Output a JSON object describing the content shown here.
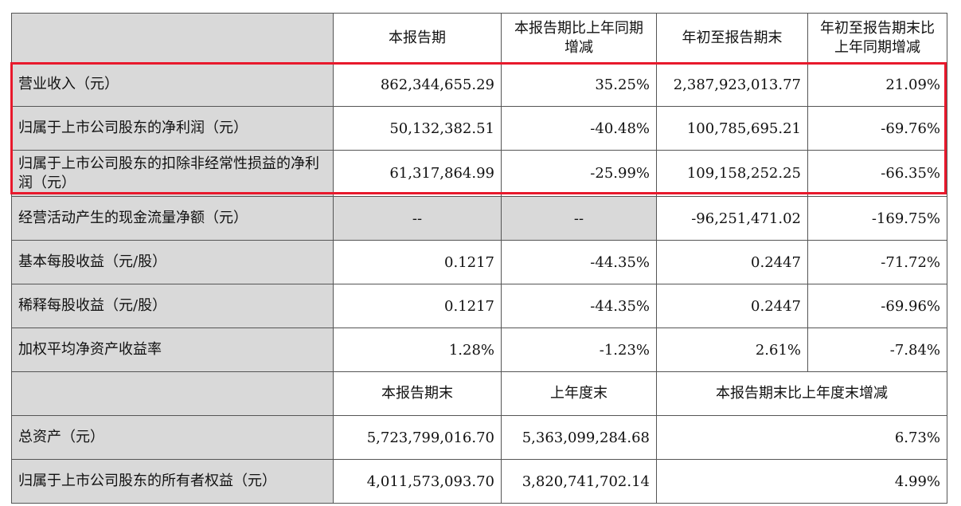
{
  "headers_top": [
    "",
    "本报告期",
    "本报告期比上年同期增减",
    "年初至报告期末",
    "年初至报告期末比上年同期增减"
  ],
  "rows_top": [
    {
      "label": "营业收入（元）",
      "cur": "862,344,655.29",
      "cur_chg": "35.25%",
      "ytd": "2,387,923,013.77",
      "ytd_chg": "21.09%"
    },
    {
      "label": "归属于上市公司股东的净利润（元）",
      "cur": "50,132,382.51",
      "cur_chg": "-40.48%",
      "ytd": "100,785,695.21",
      "ytd_chg": "-69.76%"
    },
    {
      "label": "归属于上市公司股东的扣除非经常性损益的净利润（元）",
      "cur": "61,317,864.99",
      "cur_chg": "-25.99%",
      "ytd": "109,158,252.25",
      "ytd_chg": "-66.35%"
    },
    {
      "label": "经营活动产生的现金流量净额（元）",
      "cur": "--",
      "cur_chg": "--",
      "ytd": "-96,251,471.02",
      "ytd_chg": "-169.75%"
    },
    {
      "label": "基本每股收益（元/股）",
      "cur": "0.1217",
      "cur_chg": "-44.35%",
      "ytd": "0.2447",
      "ytd_chg": "-71.72%"
    },
    {
      "label": "稀释每股收益（元/股）",
      "cur": "0.1217",
      "cur_chg": "-44.35%",
      "ytd": "0.2447",
      "ytd_chg": "-69.96%"
    },
    {
      "label": "加权平均净资产收益率",
      "cur": "1.28%",
      "cur_chg": "-1.23%",
      "ytd": "2.61%",
      "ytd_chg": "-7.84%"
    }
  ],
  "headers_bottom": [
    "",
    "本报告期末",
    "上年度末",
    "本报告期末比上年度末增减"
  ],
  "rows_bottom": [
    {
      "label": "总资产（元）",
      "end": "5,723,799,016.70",
      "prev": "5,363,099,284.68",
      "chg": "6.73%"
    },
    {
      "label": "归属于上市公司股东的所有者权益（元）",
      "end": "4,011,573,093.70",
      "prev": "3,820,741,702.14",
      "chg": "4.99%"
    }
  ],
  "highlight_color": "#e8192c"
}
